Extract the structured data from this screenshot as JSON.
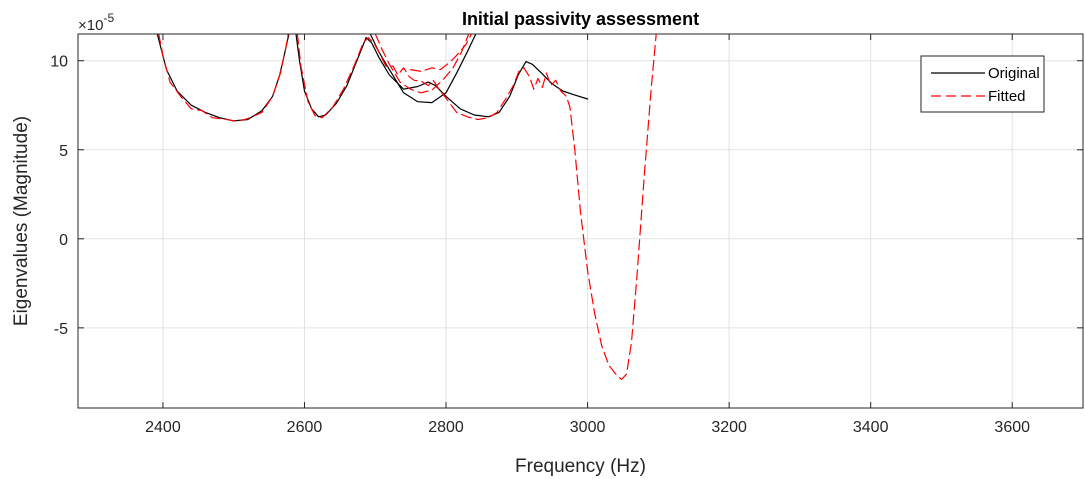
{
  "chart_data": {
    "type": "line",
    "title": "Initial passivity assessment",
    "xlabel": "Frequency (Hz)",
    "ylabel": "Eigenvalues (Magnitude)",
    "y_exponent_base": "×10",
    "y_exponent_power": "-5",
    "xlim": [
      2280,
      3700
    ],
    "ylim": [
      -9.5,
      11.5
    ],
    "x_ticks": [
      2400,
      2600,
      2800,
      3000,
      3200,
      3400,
      3600
    ],
    "y_ticks": [
      -5,
      0,
      5,
      10
    ],
    "grid": true,
    "legend_position": "top-right",
    "series": [
      {
        "name": "Original",
        "color": "#000000",
        "style": "solid",
        "segments": [
          [
            [
              2392,
              11.5
            ],
            [
              2405,
              9.5
            ],
            [
              2420,
              8.3
            ],
            [
              2440,
              7.5
            ],
            [
              2460,
              7.1
            ],
            [
              2480,
              6.8
            ],
            [
              2500,
              6.62
            ],
            [
              2520,
              6.7
            ],
            [
              2540,
              7.2
            ],
            [
              2555,
              8.0
            ],
            [
              2565,
              9.2
            ],
            [
              2573,
              10.6
            ],
            [
              2578,
              11.5
            ]
          ],
          [
            [
              2588,
              11.5
            ],
            [
              2593,
              10.0
            ],
            [
              2600,
              8.3
            ],
            [
              2610,
              7.3
            ],
            [
              2620,
              6.85
            ],
            [
              2630,
              6.95
            ],
            [
              2645,
              7.6
            ],
            [
              2660,
              8.6
            ],
            [
              2675,
              10.1
            ],
            [
              2687,
              11.3
            ],
            [
              2695,
              11.0
            ],
            [
              2705,
              10.2
            ],
            [
              2720,
              9.2
            ],
            [
              2740,
              8.4
            ],
            [
              2760,
              8.55
            ],
            [
              2775,
              8.8
            ],
            [
              2785,
              8.6
            ],
            [
              2800,
              8.0
            ],
            [
              2820,
              7.3
            ],
            [
              2840,
              6.95
            ],
            [
              2860,
              6.85
            ],
            [
              2875,
              7.1
            ],
            [
              2890,
              8.0
            ],
            [
              2902,
              9.2
            ],
            [
              2913,
              9.95
            ],
            [
              2922,
              9.8
            ],
            [
              2935,
              9.3
            ],
            [
              2950,
              8.7
            ],
            [
              2965,
              8.3
            ],
            [
              2980,
              8.1
            ],
            [
              3000,
              7.85
            ]
          ]
        ]
      },
      {
        "name": "",
        "color": "#000000",
        "style": "solid",
        "segments": [
          [
            [
              2693,
              11.5
            ],
            [
              2705,
              10.5
            ],
            [
              2720,
              9.5
            ],
            [
              2740,
              8.2
            ],
            [
              2760,
              7.7
            ],
            [
              2780,
              7.65
            ],
            [
              2800,
              8.2
            ],
            [
              2815,
              9.3
            ],
            [
              2830,
              10.5
            ],
            [
              2842,
              11.5
            ]
          ]
        ]
      },
      {
        "name": "Fitted",
        "color": "#ff0000",
        "style": "dashed",
        "segments": [
          [
            [
              2394,
              11.5
            ],
            [
              2400,
              10.3
            ],
            [
              2410,
              8.8
            ],
            [
              2425,
              8.0
            ],
            [
              2440,
              7.3
            ],
            [
              2455,
              7.2
            ],
            [
              2470,
              6.8
            ],
            [
              2490,
              6.7
            ],
            [
              2505,
              6.6
            ],
            [
              2520,
              6.75
            ],
            [
              2540,
              7.1
            ],
            [
              2555,
              8.0
            ],
            [
              2566,
              9.3
            ],
            [
              2574,
              10.8
            ],
            [
              2577,
              11.5
            ]
          ],
          [
            [
              2590,
              11.5
            ],
            [
              2595,
              9.7
            ],
            [
              2605,
              7.7
            ],
            [
              2615,
              6.9
            ],
            [
              2625,
              6.8
            ],
            [
              2640,
              7.4
            ],
            [
              2655,
              8.4
            ],
            [
              2670,
              9.7
            ],
            [
              2683,
              11.0
            ],
            [
              2690,
              11.3
            ],
            [
              2698,
              11.0
            ],
            [
              2705,
              10.5
            ],
            [
              2715,
              9.7
            ],
            [
              2725,
              9.7
            ],
            [
              2732,
              9.2
            ],
            [
              2740,
              9.6
            ],
            [
              2748,
              9.1
            ],
            [
              2755,
              8.9
            ],
            [
              2765,
              8.85
            ],
            [
              2775,
              8.6
            ],
            [
              2782,
              8.9
            ],
            [
              2790,
              8.4
            ],
            [
              2800,
              7.9
            ],
            [
              2815,
              7.1
            ],
            [
              2830,
              6.85
            ],
            [
              2845,
              6.7
            ],
            [
              2860,
              6.8
            ],
            [
              2872,
              7.1
            ],
            [
              2885,
              7.9
            ],
            [
              2895,
              8.6
            ],
            [
              2903,
              9.4
            ],
            [
              2910,
              9.6
            ],
            [
              2918,
              9.1
            ],
            [
              2924,
              8.4
            ],
            [
              2930,
              9.0
            ],
            [
              2936,
              8.5
            ],
            [
              2942,
              9.3
            ],
            [
              2948,
              8.6
            ],
            [
              2955,
              8.9
            ],
            [
              2962,
              8.3
            ],
            [
              2970,
              8.0
            ],
            [
              2975,
              7.4
            ],
            [
              2982,
              5.0
            ],
            [
              2990,
              1.5
            ],
            [
              3000,
              -1.8
            ],
            [
              3010,
              -4.2
            ],
            [
              3020,
              -6.0
            ],
            [
              3030,
              -7.1
            ],
            [
              3040,
              -7.6
            ],
            [
              3048,
              -7.9
            ],
            [
              3055,
              -7.6
            ],
            [
              3062,
              -5.8
            ],
            [
              3070,
              -2.0
            ],
            [
              3080,
              3.5
            ],
            [
              3090,
              8.5
            ],
            [
              3097,
              11.5
            ]
          ]
        ]
      },
      {
        "name": "",
        "color": "#ff0000",
        "style": "dashed",
        "segments": [
          [
            [
              2700,
              11.5
            ],
            [
              2710,
              10.6
            ],
            [
              2720,
              9.8
            ],
            [
              2735,
              8.8
            ],
            [
              2750,
              8.4
            ],
            [
              2765,
              8.2
            ],
            [
              2780,
              8.35
            ],
            [
              2795,
              8.9
            ],
            [
              2810,
              9.6
            ],
            [
              2822,
              10.5
            ],
            [
              2832,
              11.5
            ]
          ],
          [
            [
              2750,
              9.5
            ],
            [
              2765,
              9.4
            ],
            [
              2780,
              9.6
            ],
            [
              2792,
              9.5
            ],
            [
              2805,
              9.9
            ],
            [
              2815,
              10.3
            ],
            [
              2828,
              10.9
            ],
            [
              2836,
              11.5
            ]
          ]
        ]
      }
    ]
  }
}
